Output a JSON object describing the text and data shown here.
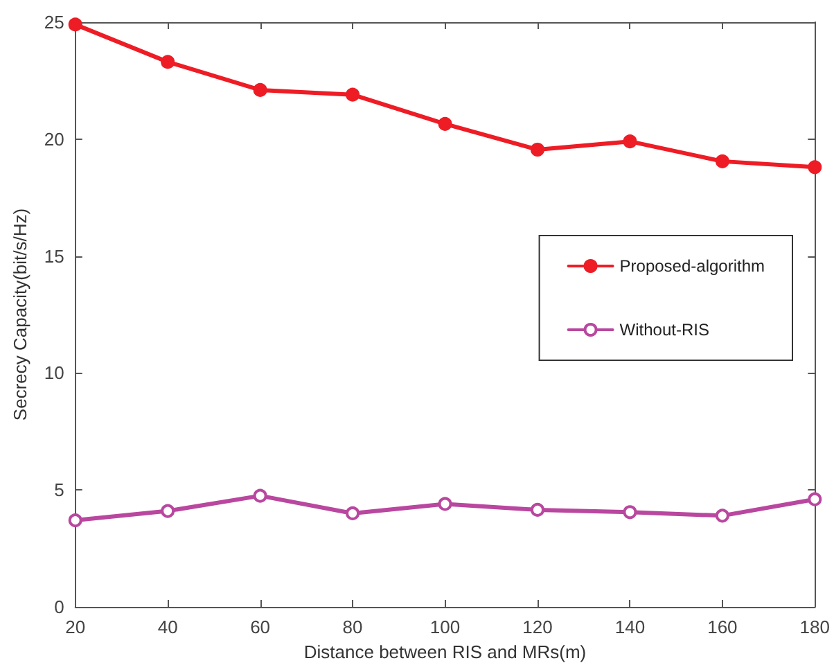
{
  "chart_data": {
    "type": "line",
    "xlabel": "Distance between RIS and MRs(m)",
    "ylabel": "Secrecy Capacity(bit/s/Hz)",
    "x": [
      20,
      40,
      60,
      80,
      100,
      120,
      140,
      160,
      180
    ],
    "series": [
      {
        "name": "Proposed-algorithm",
        "color": "#ee1c25",
        "values": [
          24.9,
          23.3,
          22.1,
          21.9,
          20.65,
          19.55,
          19.9,
          19.05,
          18.8
        ]
      },
      {
        "name": "Without-RIS",
        "color": "#b9479f",
        "values": [
          3.7,
          4.1,
          4.75,
          4.0,
          4.4,
          4.15,
          4.05,
          3.9,
          4.6
        ]
      }
    ],
    "xlim": [
      20,
      180
    ],
    "xticks": [
      20,
      40,
      60,
      80,
      100,
      120,
      140,
      160,
      180
    ],
    "ylim": [
      0,
      25
    ],
    "yticks": [
      0,
      5,
      10,
      15,
      20,
      25
    ],
    "grid": false,
    "legend": "right",
    "marker": "circle",
    "line_style": "solid"
  }
}
